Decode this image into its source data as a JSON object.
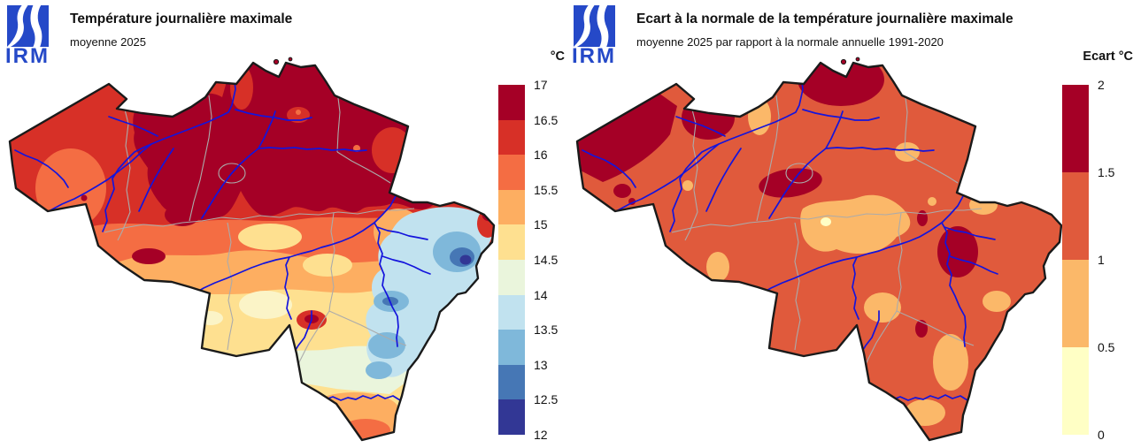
{
  "brand": {
    "logo_text": "IRM",
    "logo_color": "#2549C8"
  },
  "colors": {
    "river": "#1414DC",
    "admin_border": "#ABABAB",
    "country_border": "#1A1A1A",
    "background": "#FFFFFF"
  },
  "left_panel": {
    "title": "Température journalière maximale",
    "subtitle": "moyenne 2025",
    "legend": {
      "unit_label": "°C",
      "ticks": [
        "17",
        "16.5",
        "16",
        "15.5",
        "15",
        "14.5",
        "14",
        "13.5",
        "13",
        "12.5",
        "12"
      ],
      "colors": [
        "#A50026",
        "#D73027",
        "#F46D43",
        "#FDAE61",
        "#FEE090",
        "#EAF5DC",
        "#C1E2EF",
        "#7FB8DA",
        "#4677B5",
        "#323795"
      ]
    }
  },
  "right_panel": {
    "title": "Ecart à la normale de la température journalière maximale",
    "subtitle": "moyenne 2025 par rapport à la normale annuelle 1991-2020",
    "legend": {
      "unit_label": "Ecart °C",
      "ticks": [
        "2",
        "1.5",
        "1",
        "0.5",
        "0"
      ],
      "colors": [
        "#A50026",
        "#E05A3C",
        "#FBB869",
        "#FFFFC5"
      ]
    }
  },
  "chart_data": [
    {
      "type": "heatmap",
      "region": "Belgique",
      "title": "Température journalière maximale",
      "subtitle": "moyenne 2025",
      "unit": "°C",
      "scale": {
        "min": 12,
        "max": 17,
        "step": 0.5,
        "ticks": [
          17,
          16.5,
          16,
          15.5,
          15,
          14.5,
          14,
          13.5,
          13,
          12.5,
          12
        ],
        "colors": [
          "#A50026",
          "#D73027",
          "#F46D43",
          "#FDAE61",
          "#FEE090",
          "#EAF5DC",
          "#C1E2EF",
          "#7FB8DA",
          "#4677B5",
          "#323795"
        ]
      },
      "summary": "16.5–17 °C au nord et au centre, 15–16 °C au sud-ouest, 12–13 °C sur les Hautes Fagnes à l'est, 14–15 °C en Ardenne"
    },
    {
      "type": "heatmap",
      "region": "Belgique",
      "title": "Ecart à la normale de la température journalière maximale",
      "subtitle": "moyenne 2025 par rapport à la normale annuelle 1991-2020",
      "unit": "°C",
      "scale": {
        "min": 0,
        "max": 2,
        "step": 0.5,
        "ticks": [
          2,
          1.5,
          1,
          0.5,
          0
        ],
        "colors": [
          "#A50026",
          "#E05A3C",
          "#FBB869",
          "#FFFFC5"
        ]
      },
      "summary": "écart de 1 à 1.5 °C sur la majeure partie du pays, localement 1.5–2 °C (littoral, nord, centre et est), 0.5–1 °C par endroits"
    }
  ]
}
